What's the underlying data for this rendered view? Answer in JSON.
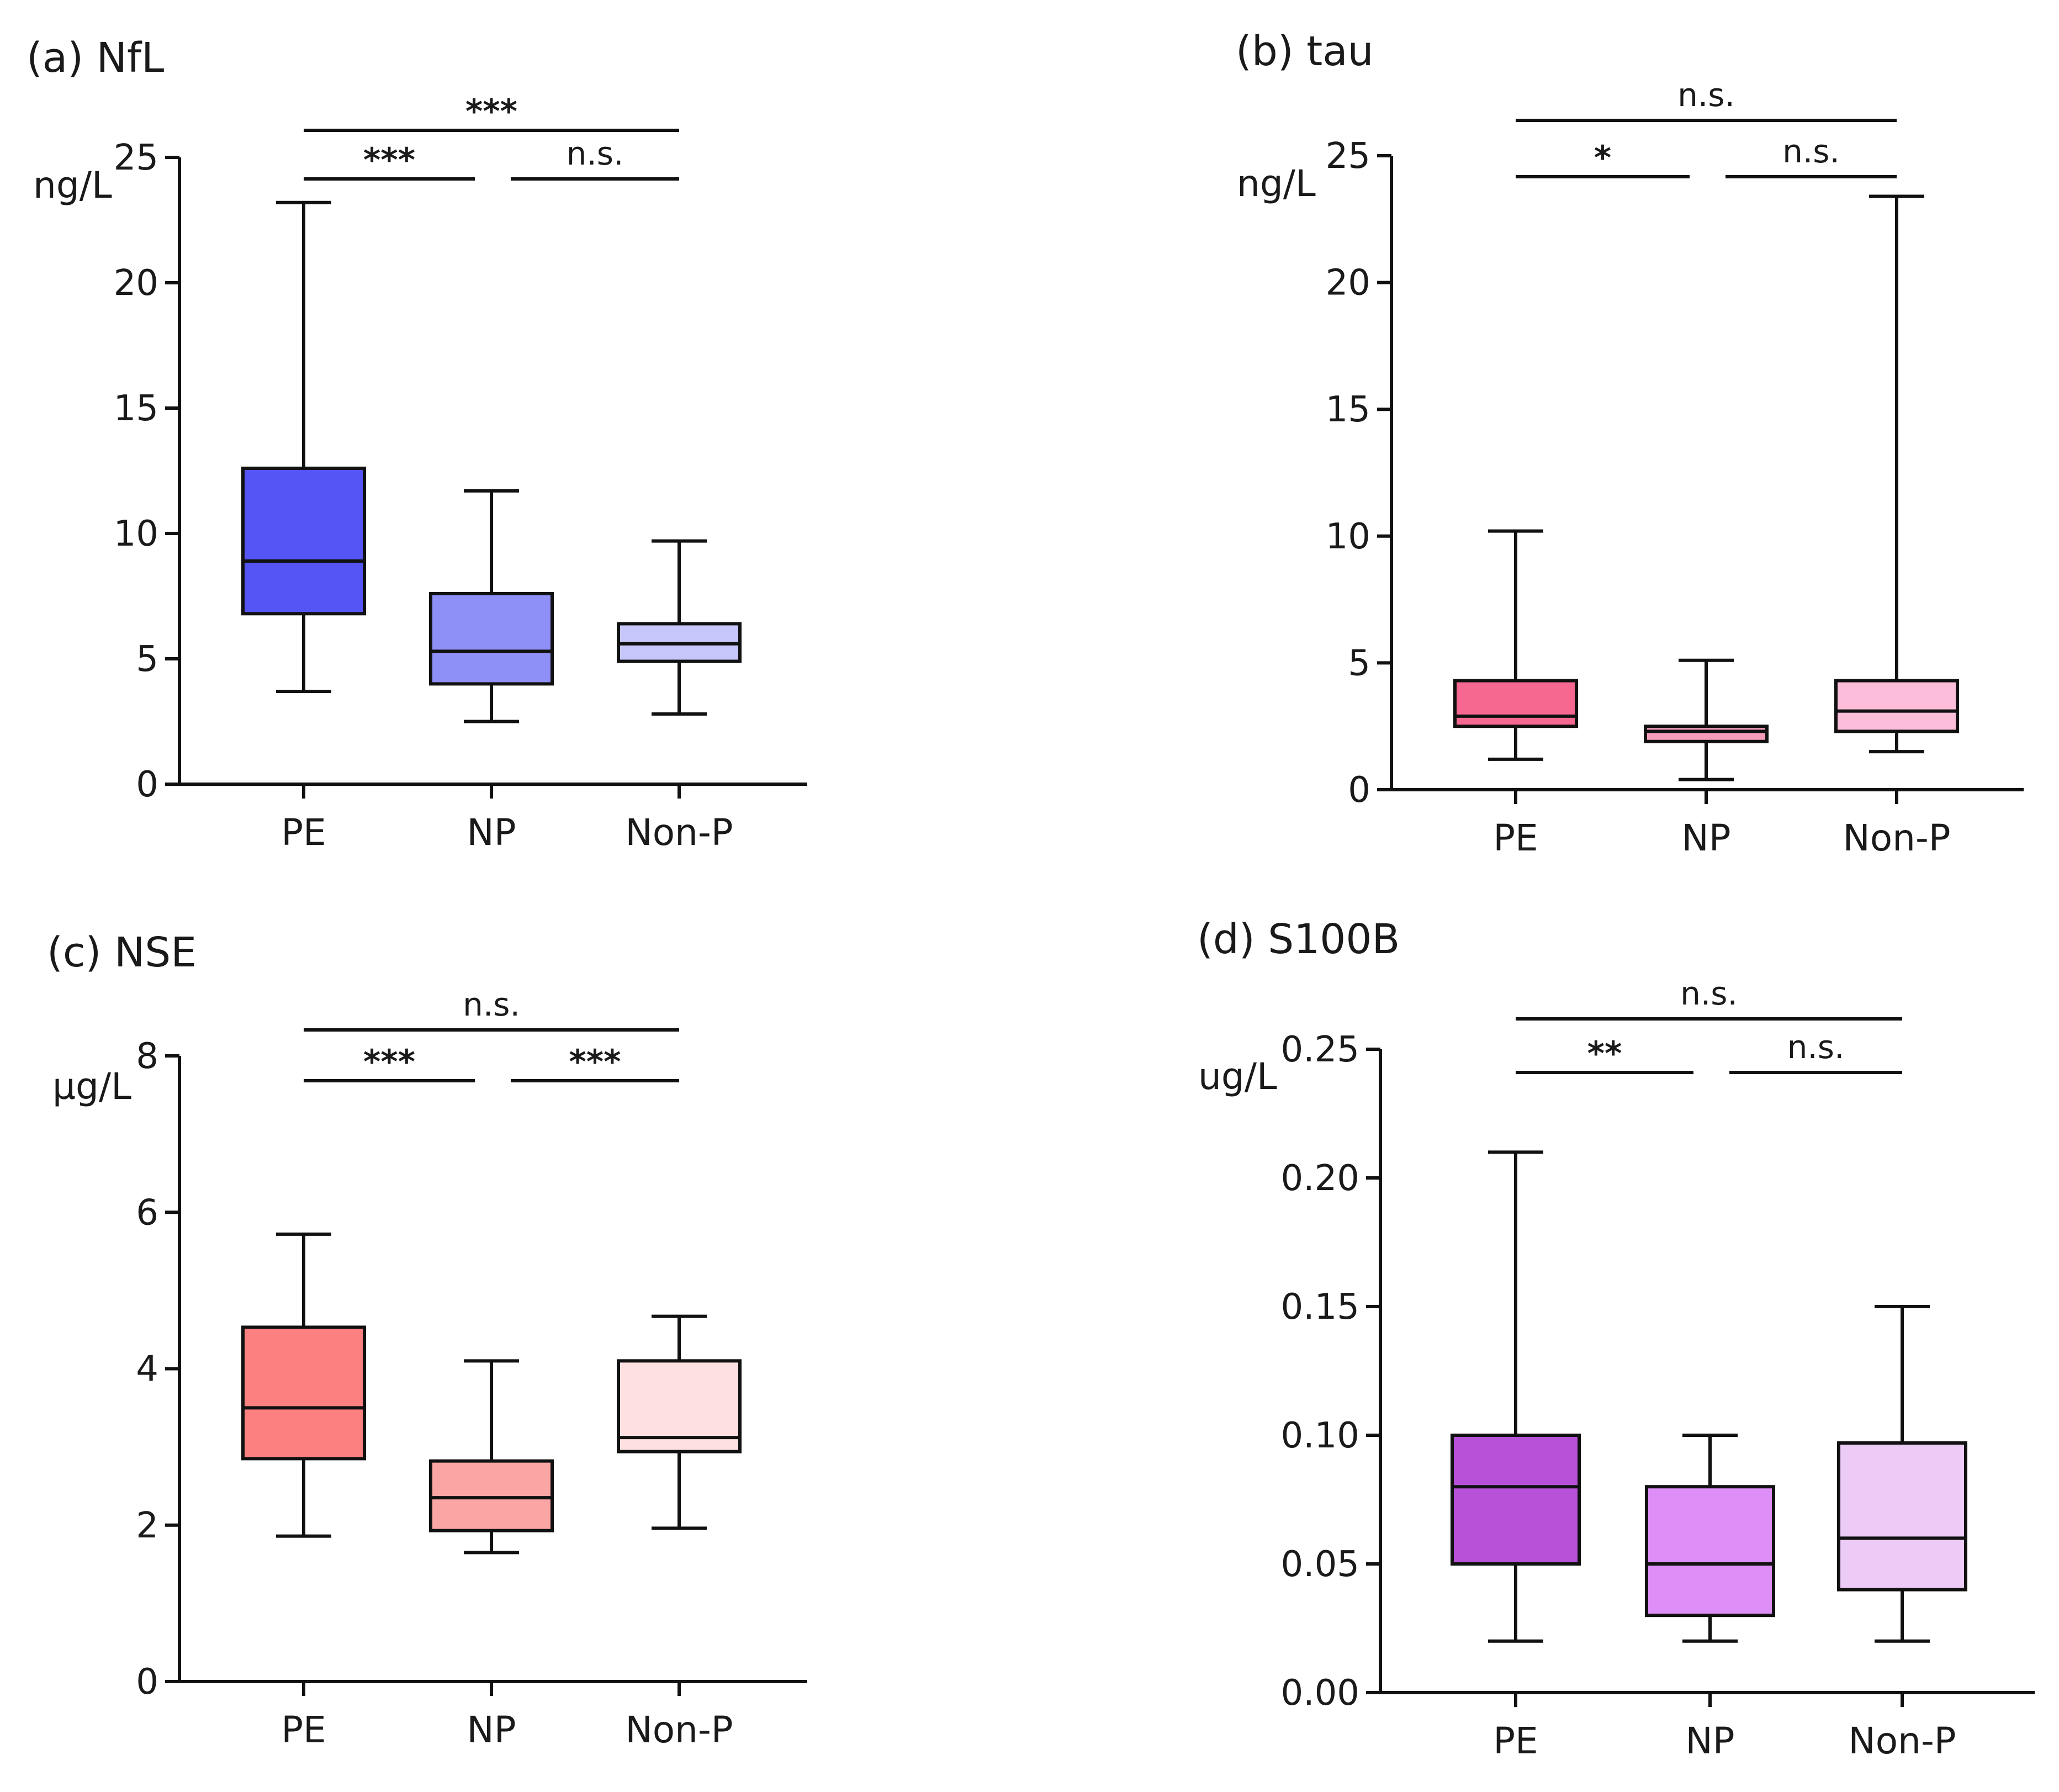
{
  "chart_data": [
    {
      "type": "box",
      "title": "(a) NfL",
      "ylabel": "ng/L",
      "ylim": [
        0,
        25
      ],
      "yticks": [
        0,
        5,
        10,
        15,
        20,
        25
      ],
      "ytick_labels": [
        "0",
        "5",
        "10",
        "15",
        "20",
        "25"
      ],
      "categories": [
        "PE",
        "NP",
        "Non-P"
      ],
      "boxes": [
        {
          "name": "PE",
          "min": 3.7,
          "q1": 6.8,
          "median": 8.9,
          "q3": 12.6,
          "max": 23.2,
          "color": "#5555f5"
        },
        {
          "name": "NP",
          "min": 2.5,
          "q1": 4.0,
          "median": 5.3,
          "q3": 7.6,
          "max": 11.7,
          "color": "#8f8ff8"
        },
        {
          "name": "Non-P",
          "min": 2.8,
          "q1": 4.9,
          "median": 5.6,
          "q3": 6.4,
          "max": 9.7,
          "color": "#c6c6fb"
        }
      ],
      "significance": [
        {
          "from": 0,
          "to": 2,
          "label": "***",
          "level": 2
        },
        {
          "from": 0,
          "to": 1,
          "label": "***",
          "level": 1
        },
        {
          "from": 1,
          "to": 2,
          "label": "n.s.",
          "level": 1
        }
      ]
    },
    {
      "type": "box",
      "title": "(b) tau",
      "ylabel": "ng/L",
      "ylim": [
        0,
        25
      ],
      "yticks": [
        0,
        5,
        10,
        15,
        20,
        25
      ],
      "ytick_labels": [
        "0",
        "5",
        "10",
        "15",
        "20",
        "25"
      ],
      "categories": [
        "PE",
        "NP",
        "Non-P"
      ],
      "boxes": [
        {
          "name": "PE",
          "min": 1.2,
          "q1": 2.5,
          "median": 2.9,
          "q3": 4.3,
          "max": 10.2,
          "color": "#f76891"
        },
        {
          "name": "NP",
          "min": 0.4,
          "q1": 1.9,
          "median": 2.3,
          "q3": 2.5,
          "max": 5.1,
          "color": "#f59cbd"
        },
        {
          "name": "Non-P",
          "min": 1.5,
          "q1": 2.3,
          "median": 3.1,
          "q3": 4.3,
          "max": 23.4,
          "color": "#fbbdd9"
        }
      ],
      "significance": [
        {
          "from": 0,
          "to": 2,
          "label": "n.s.",
          "level": 2
        },
        {
          "from": 0,
          "to": 1,
          "label": "*",
          "level": 1
        },
        {
          "from": 1,
          "to": 2,
          "label": "n.s.",
          "level": 1
        }
      ]
    },
    {
      "type": "box",
      "title": "(c) NSE",
      "ylabel": "µg/L",
      "ylim": [
        0,
        8
      ],
      "yticks": [
        0,
        2,
        4,
        6,
        8
      ],
      "ytick_labels": [
        "0",
        "2",
        "4",
        "6",
        "8"
      ],
      "categories": [
        "PE",
        "NP",
        "Non-P"
      ],
      "boxes": [
        {
          "name": "PE",
          "min": 1.86,
          "q1": 2.85,
          "median": 3.5,
          "q3": 4.53,
          "max": 5.72,
          "color": "#fc8080"
        },
        {
          "name": "NP",
          "min": 1.65,
          "q1": 1.93,
          "median": 2.35,
          "q3": 2.82,
          "max": 4.1,
          "color": "#fca5a5"
        },
        {
          "name": "Non-P",
          "min": 1.96,
          "q1": 2.94,
          "median": 3.12,
          "q3": 4.1,
          "max": 4.67,
          "color": "#fee0e0"
        }
      ],
      "significance": [
        {
          "from": 0,
          "to": 2,
          "label": "n.s.",
          "level": 2
        },
        {
          "from": 0,
          "to": 1,
          "label": "***",
          "level": 1
        },
        {
          "from": 1,
          "to": 2,
          "label": "***",
          "level": 1
        }
      ]
    },
    {
      "type": "box",
      "title": "(d) S100B",
      "ylabel": "ug/L",
      "ylim": [
        0,
        0.25
      ],
      "yticks": [
        0,
        0.05,
        0.1,
        0.15,
        0.2,
        0.25
      ],
      "ytick_labels": [
        "0.00",
        "0.05",
        "0.10",
        "0.15",
        "0.20",
        "0.25"
      ],
      "categories": [
        "PE",
        "NP",
        "Non-P"
      ],
      "boxes": [
        {
          "name": "PE",
          "min": 0.02,
          "q1": 0.05,
          "median": 0.08,
          "q3": 0.1,
          "max": 0.21,
          "color": "#b752d8"
        },
        {
          "name": "NP",
          "min": 0.02,
          "q1": 0.03,
          "median": 0.05,
          "q3": 0.08,
          "max": 0.1,
          "color": "#dd8ef7"
        },
        {
          "name": "Non-P",
          "min": 0.02,
          "q1": 0.04,
          "median": 0.06,
          "q3": 0.097,
          "max": 0.15,
          "color": "#eccbf7"
        }
      ],
      "significance": [
        {
          "from": 0,
          "to": 2,
          "label": "n.s.",
          "level": 2
        },
        {
          "from": 0,
          "to": 1,
          "label": "**",
          "level": 1
        },
        {
          "from": 1,
          "to": 2,
          "label": "n.s.",
          "level": 1
        }
      ]
    }
  ]
}
